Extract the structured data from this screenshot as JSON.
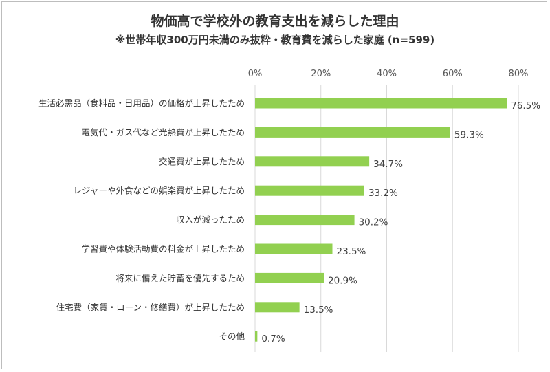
{
  "chart_data": {
    "type": "bar",
    "orientation": "horizontal",
    "title": "物価高で学校外の教育支出を減らした理由",
    "subtitle": "※世帯年収300万円未満のみ抜粋・教育費を減らした家庭 (n=599)",
    "categories": [
      "生活必需品（食料品・日用品）の価格が上昇したため",
      "電気代・ガス代など光熱費が上昇したため",
      "交通費が上昇したため",
      "レジャーや外食などの娯楽費が上昇したため",
      "収入が減ったため",
      "学習費や体験活動費の料金が上昇したため",
      "将来に備えた貯蓄を優先するため",
      "住宅費（家賃・ローン・修繕費）が上昇したため",
      "その他"
    ],
    "values": [
      76.5,
      59.3,
      34.7,
      33.2,
      30.2,
      23.5,
      20.9,
      13.5,
      0.7
    ],
    "value_labels": [
      "76.5%",
      "59.3%",
      "34.7%",
      "33.2%",
      "30.2%",
      "23.5%",
      "20.9%",
      "13.5%",
      "0.7%"
    ],
    "xlim": [
      0,
      80
    ],
    "x_ticks": [
      0,
      20,
      40,
      60,
      80
    ],
    "x_tick_labels": [
      "0%",
      "20%",
      "40%",
      "60%",
      "80%"
    ],
    "x_axis_position": "top",
    "grid": true,
    "legend": "none",
    "bar_color": "#92d050",
    "grid_color": "#d9d9d9"
  }
}
